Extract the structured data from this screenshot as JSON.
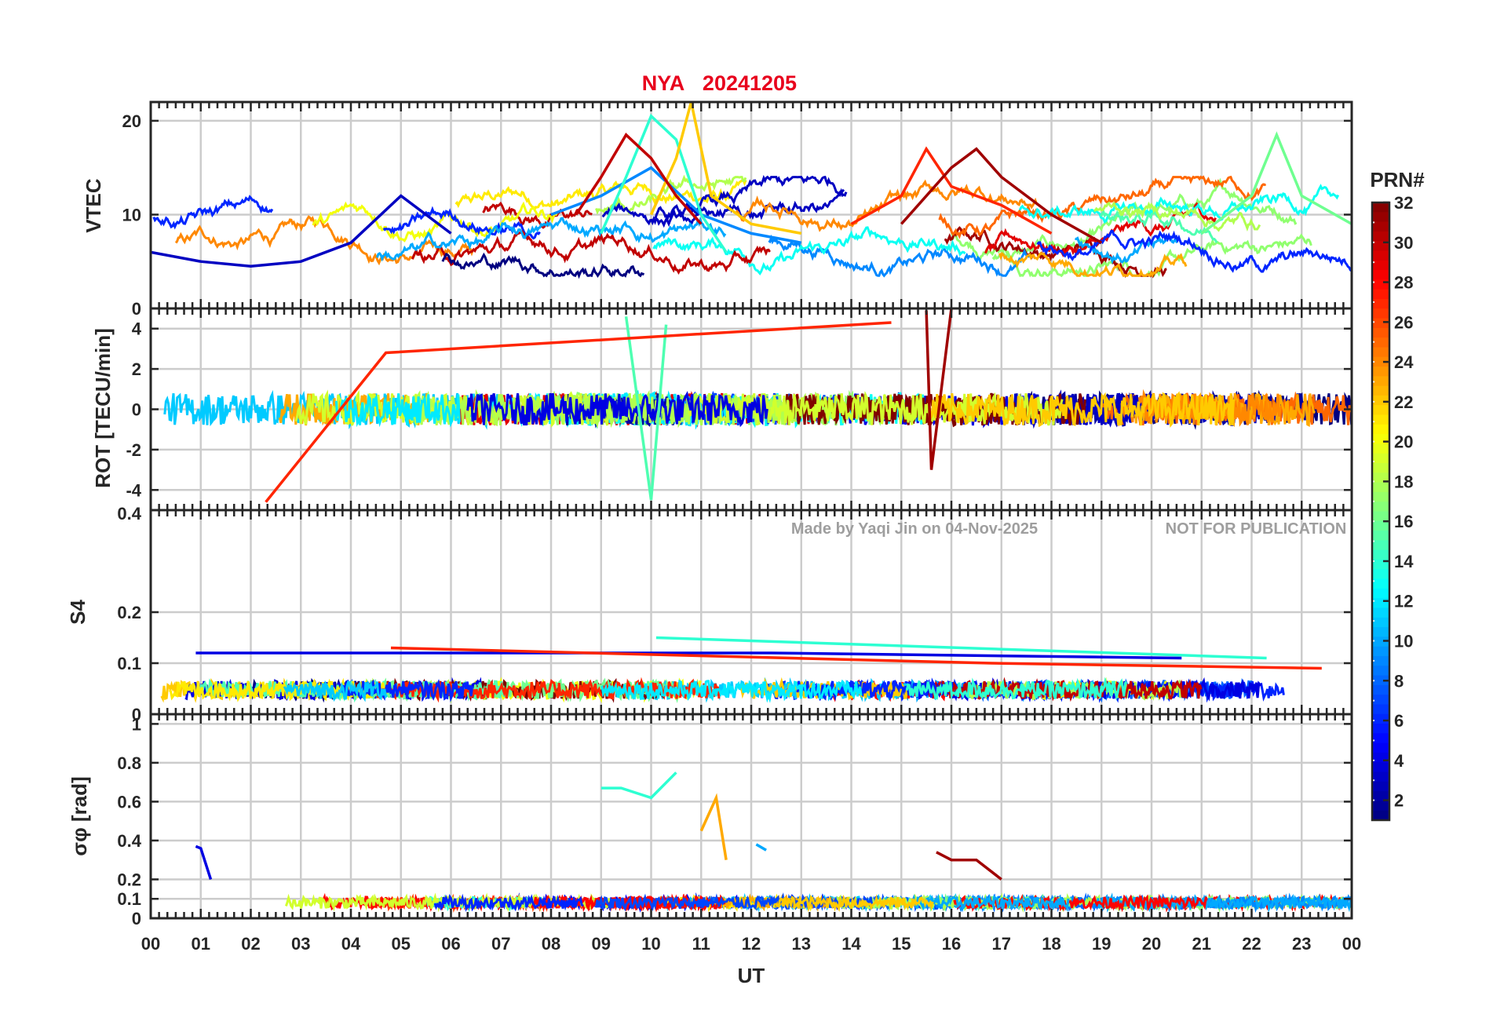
{
  "figure": {
    "station": "NYA",
    "date": "20241205",
    "watermark_left": "Made by Yaqi Jin on 04-Nov-2025",
    "watermark_right": "NOT FOR PUBLICATION",
    "title_color": "#e8001c"
  },
  "chart_data": [
    {
      "type": "line",
      "panel": "vtec",
      "ylabel": "VTEC",
      "ylim": [
        0,
        22
      ],
      "yticks": [
        0,
        10,
        20
      ],
      "ytick_labels": [
        "0",
        "10",
        "20"
      ],
      "xlim": [
        0,
        24
      ],
      "series_summary": [
        {
          "prn": 3,
          "x": [
            0,
            1,
            2,
            3,
            4,
            5,
            6
          ],
          "values": [
            6,
            5,
            4.5,
            5,
            7,
            12,
            8
          ]
        },
        {
          "prn": 9,
          "x": [
            8,
            9,
            10,
            11,
            12,
            13
          ],
          "values": [
            10,
            12,
            15,
            10,
            8,
            7
          ]
        },
        {
          "prn": 14,
          "x": [
            9,
            9.5,
            10,
            10.5,
            11,
            11.5
          ],
          "values": [
            8,
            14,
            20.5,
            18,
            10,
            6
          ]
        },
        {
          "prn": 22,
          "x": [
            10,
            10.5,
            10.8,
            11.2,
            12,
            13
          ],
          "values": [
            10,
            16,
            22,
            12,
            9,
            8
          ]
        },
        {
          "prn": 30,
          "x": [
            8.5,
            9,
            9.5,
            10,
            10.5,
            11
          ],
          "values": [
            10,
            14,
            18.5,
            16,
            12,
            9
          ]
        },
        {
          "prn": 27,
          "x": [
            14,
            15,
            15.5,
            16,
            17,
            18
          ],
          "values": [
            9,
            12,
            17,
            13,
            11,
            8
          ]
        },
        {
          "prn": 31,
          "x": [
            15,
            16,
            16.5,
            17,
            18,
            19
          ],
          "values": [
            9,
            15,
            17,
            14,
            10,
            7
          ]
        },
        {
          "prn": 16,
          "x": [
            21,
            22,
            22.5,
            23,
            24
          ],
          "values": [
            8,
            12,
            18.5,
            12,
            9
          ]
        }
      ]
    },
    {
      "type": "line",
      "panel": "rot",
      "ylabel": "ROT [TECU/min]",
      "ylim": [
        -5,
        5
      ],
      "yticks": [
        -4,
        -2,
        0,
        2,
        4
      ],
      "ytick_labels": [
        "-4",
        "-2",
        "0",
        "2",
        "4"
      ],
      "xlim": [
        0,
        24
      ],
      "series_summary": [
        {
          "prn": 15,
          "x": [
            9.5,
            10,
            10.3
          ],
          "values": [
            4.6,
            -4.5,
            4.2
          ]
        },
        {
          "prn": 31,
          "x": [
            15.5,
            15.6,
            16
          ],
          "values": [
            4.9,
            -3,
            5
          ]
        },
        {
          "prn": 27,
          "x": [
            2.3,
            4.7,
            14.8
          ],
          "values": [
            -4.6,
            2.8,
            4.3
          ]
        }
      ]
    },
    {
      "type": "line",
      "panel": "s4",
      "ylabel": "S4",
      "ylim": [
        0,
        0.4
      ],
      "yticks": [
        0,
        0.1,
        0.2
      ],
      "ytick_labels": [
        "0",
        "0.1",
        "0.2"
      ],
      "top_label": "0.4",
      "xlim": [
        0,
        24
      ],
      "series_summary": [
        {
          "prn": 4,
          "x": [
            0.9,
            12.4,
            20.6
          ],
          "values": [
            0.12,
            0.12,
            0.11
          ]
        },
        {
          "prn": 27,
          "x": [
            4.8,
            16.8,
            23.4
          ],
          "values": [
            0.13,
            0.1,
            0.09
          ]
        },
        {
          "prn": 14,
          "x": [
            10.1,
            22.3
          ],
          "values": [
            0.15,
            0.11
          ]
        }
      ]
    },
    {
      "type": "line",
      "panel": "sigma_phi",
      "ylabel": "σφ [rad]",
      "ylim": [
        0,
        1.05
      ],
      "yticks": [
        0,
        0.1,
        0.2,
        0.4,
        0.6,
        0.8,
        1
      ],
      "ytick_labels": [
        "0",
        "0.1",
        "0.2",
        "0.4",
        "0.6",
        "0.8",
        "1"
      ],
      "xlim": [
        0,
        24
      ],
      "series_summary": [
        {
          "prn": 14,
          "x": [
            9,
            9.4,
            10,
            10.5
          ],
          "values": [
            0.67,
            0.67,
            0.62,
            0.75
          ]
        },
        {
          "prn": 23,
          "x": [
            11,
            11.3,
            11.5
          ],
          "values": [
            0.45,
            0.62,
            0.3
          ]
        },
        {
          "prn": 31,
          "x": [
            15.7,
            16,
            16.5,
            17
          ],
          "values": [
            0.34,
            0.3,
            0.3,
            0.2
          ]
        },
        {
          "prn": 4,
          "x": [
            0.9,
            1,
            1.2
          ],
          "values": [
            0.37,
            0.36,
            0.2
          ]
        },
        {
          "prn": 10,
          "x": [
            12.1,
            12.3
          ],
          "values": [
            0.38,
            0.35
          ]
        }
      ]
    }
  ],
  "x_axis": {
    "label": "UT",
    "tick_labels": [
      "00",
      "01",
      "02",
      "03",
      "04",
      "05",
      "06",
      "07",
      "08",
      "09",
      "10",
      "11",
      "12",
      "13",
      "14",
      "15",
      "16",
      "17",
      "18",
      "19",
      "20",
      "21",
      "22",
      "23",
      "00"
    ]
  },
  "colorbar": {
    "title": "PRN#",
    "range": [
      1,
      32
    ],
    "tick_values": [
      2,
      4,
      6,
      8,
      10,
      12,
      14,
      16,
      18,
      20,
      22,
      24,
      26,
      28,
      30,
      32
    ],
    "tick_labels": [
      "2",
      "4",
      "6",
      "8",
      "10",
      "12",
      "14",
      "16",
      "18",
      "20",
      "22",
      "24",
      "26",
      "28",
      "30",
      "32"
    ]
  }
}
